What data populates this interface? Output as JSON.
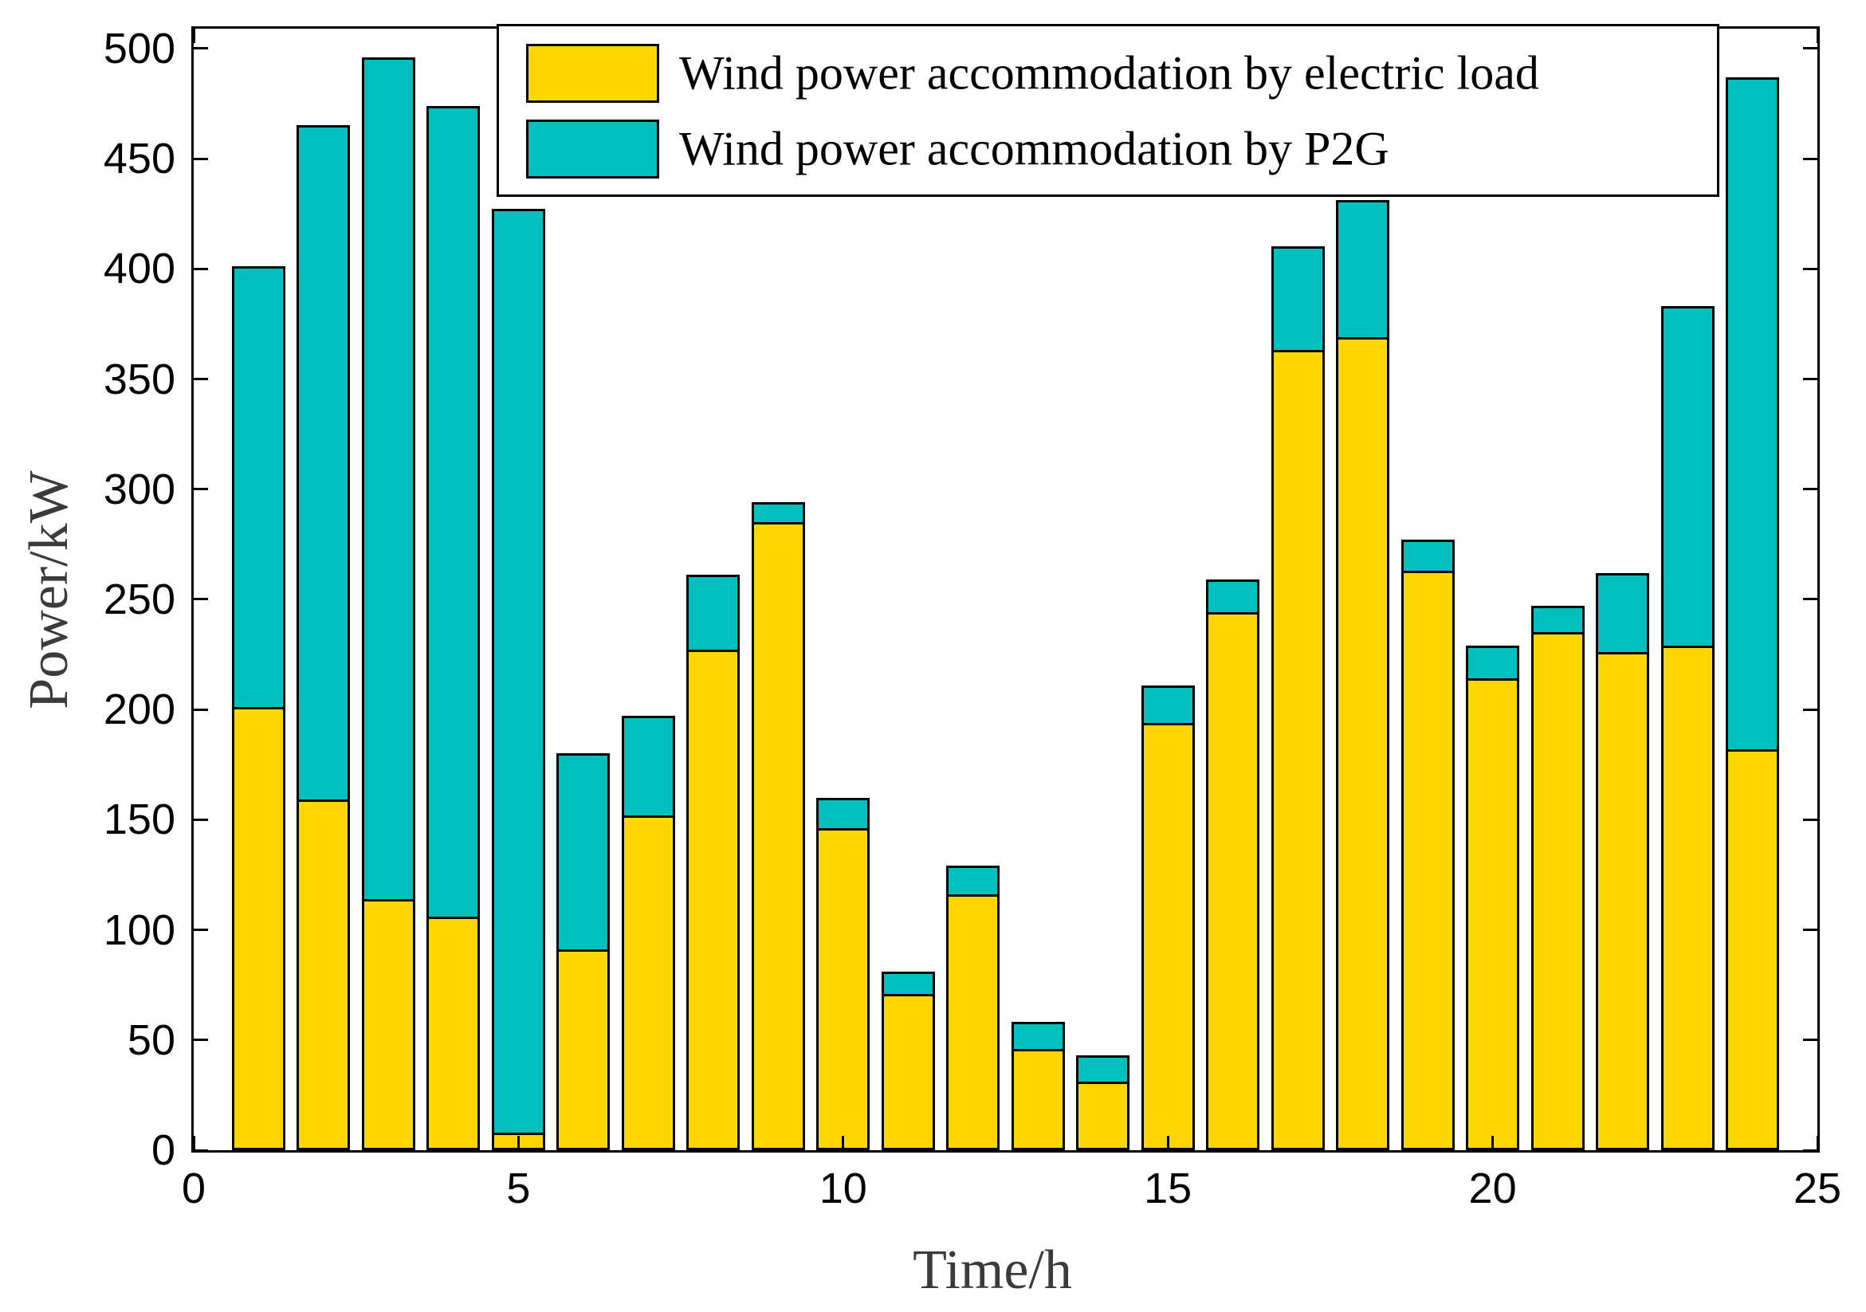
{
  "chart_data": {
    "type": "bar",
    "stacked": true,
    "xlabel": "Time/h",
    "ylabel": "Power/kW",
    "xlim": [
      0,
      25
    ],
    "ylim": [
      0,
      509
    ],
    "x_ticks": [
      0,
      5,
      10,
      15,
      20,
      25
    ],
    "y_ticks": [
      0,
      50,
      100,
      150,
      200,
      250,
      300,
      350,
      400,
      450,
      500
    ],
    "grid": false,
    "legend_position": "top",
    "categories": [
      1,
      2,
      3,
      4,
      5,
      6,
      7,
      8,
      9,
      10,
      11,
      12,
      13,
      14,
      15,
      16,
      17,
      18,
      19,
      20,
      21,
      22,
      23,
      24
    ],
    "series": [
      {
        "name": "Wind power accommodation by electric load",
        "color": "#FFD700",
        "values": [
          200,
          158,
          113,
          105,
          7,
          90,
          151,
          226,
          284,
          145,
          70,
          115,
          45,
          30,
          193,
          243,
          362,
          368,
          262,
          213,
          234,
          225,
          228,
          181
        ]
      },
      {
        "name": "Wind power accommodation by P2G",
        "color": "#00BFBF",
        "values": [
          200,
          306,
          382,
          368,
          419,
          89,
          45,
          34,
          9,
          14,
          10,
          13,
          12,
          12,
          17,
          15,
          47,
          62,
          14,
          15,
          12,
          36,
          154,
          305
        ]
      }
    ],
    "totals": [
      400,
      464,
      495,
      473,
      426,
      179,
      196,
      260,
      293,
      159,
      80,
      128,
      57,
      42,
      210,
      258,
      409,
      430,
      276,
      228,
      246,
      261,
      382,
      486
    ]
  },
  "colors": {
    "bar_outline": "#000000",
    "axis": "#000000",
    "axis_title_text": "#3b3b3b",
    "tick_label_text": "#000000",
    "background": "#ffffff"
  }
}
